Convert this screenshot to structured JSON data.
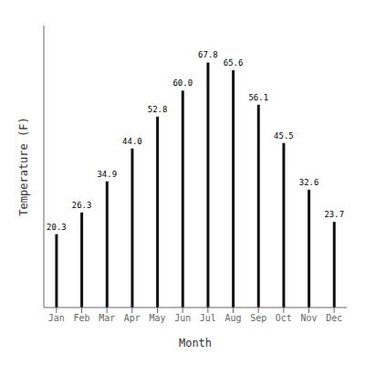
{
  "chart_data": {
    "type": "bar",
    "categories": [
      "Jan",
      "Feb",
      "Mar",
      "Apr",
      "May",
      "Jun",
      "Jul",
      "Aug",
      "Sep",
      "Oct",
      "Nov",
      "Dec"
    ],
    "values": [
      20.3,
      26.3,
      34.9,
      44.0,
      52.8,
      60.0,
      67.8,
      65.6,
      56.1,
      45.5,
      32.6,
      23.7
    ],
    "value_labels": [
      "20.3",
      "26.3",
      "34.9",
      "44.0",
      "52.8",
      "60.0",
      "67.8",
      "65.6",
      "56.1",
      "45.5",
      "32.6",
      "23.7"
    ],
    "color": "#111111",
    "xlabel": "Month",
    "ylabel": "Temperature (F)",
    "ylim": [
      0,
      78
    ],
    "data_labels": true,
    "tick_labels": "x",
    "grid": false
  }
}
